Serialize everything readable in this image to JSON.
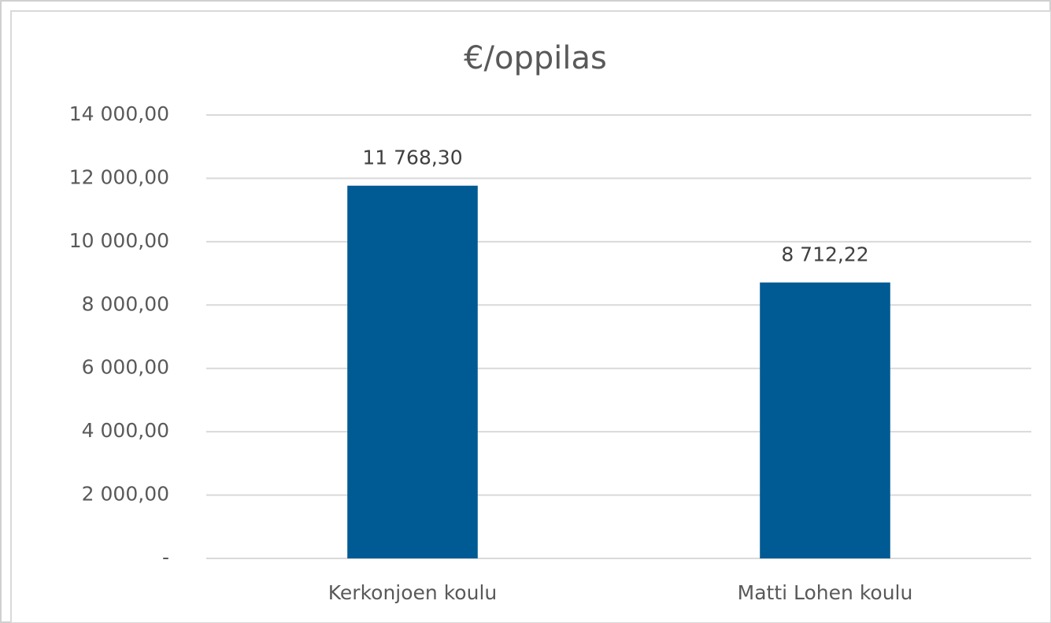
{
  "chart_data": {
    "type": "bar",
    "title": "€/oppilas",
    "categories": [
      "Kerkonjoen koulu",
      "Matti Lohen koulu"
    ],
    "values": [
      11768.3,
      8712.22
    ],
    "value_labels": [
      "11 768,30",
      "8 712,22"
    ],
    "color": "#005b94",
    "ylim": [
      0,
      14000
    ],
    "yticks": [
      {
        "value": 0,
        "label": "-"
      },
      {
        "value": 2000,
        "label": "2 000,00"
      },
      {
        "value": 4000,
        "label": "4 000,00"
      },
      {
        "value": 6000,
        "label": "6 000,00"
      },
      {
        "value": 8000,
        "label": "8 000,00"
      },
      {
        "value": 10000,
        "label": "10 000,00"
      },
      {
        "value": 12000,
        "label": "12 000,00"
      },
      {
        "value": 14000,
        "label": "14 000,00"
      }
    ],
    "grid": true
  }
}
